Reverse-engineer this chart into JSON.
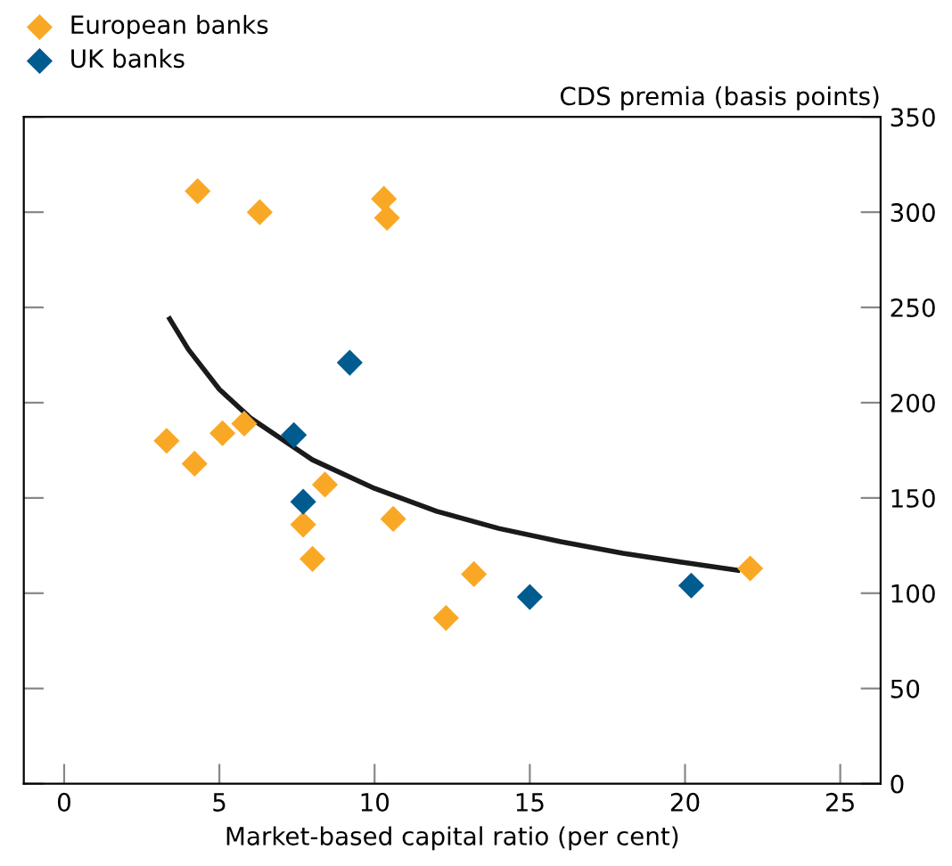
{
  "chart_data": {
    "type": "scatter",
    "xlabel": "Market-based capital ratio (per cent)",
    "ylabel": "CDS premia (basis points)",
    "xlim": [
      -1.3,
      26.3
    ],
    "xticks": [
      0,
      5,
      10,
      15,
      20,
      25
    ],
    "ylim": [
      0,
      350
    ],
    "yticks": [
      0,
      50,
      100,
      150,
      200,
      250,
      300,
      350
    ],
    "grid": false,
    "legend": "top left",
    "marker": "diamond",
    "series": [
      {
        "name": "European banks",
        "color": "#f9a825",
        "x": [
          4.3,
          6.3,
          10.3,
          10.4,
          3.3,
          4.2,
          5.1,
          5.8,
          8.4,
          7.7,
          8.0,
          10.6,
          13.2,
          12.3,
          22.1
        ],
        "values": [
          311,
          300,
          307,
          297,
          180,
          168,
          184,
          189,
          157,
          136,
          118,
          139,
          110,
          87,
          113
        ]
      },
      {
        "name": "UK banks",
        "color": "#005b8f",
        "x": [
          7.4,
          7.7,
          9.2,
          15.0,
          20.2
        ],
        "values": [
          183,
          148,
          221,
          98,
          104
        ]
      },
      {
        "type": "line",
        "color": "#1a1a1a",
        "marker": "none",
        "line_style": "solid",
        "x": [
          3.4,
          4,
          5,
          6,
          8,
          10,
          12,
          14,
          16,
          18,
          20,
          21.7
        ],
        "values": [
          244,
          228,
          207,
          192,
          170,
          155,
          143,
          134,
          127,
          121,
          116,
          112
        ]
      }
    ]
  }
}
